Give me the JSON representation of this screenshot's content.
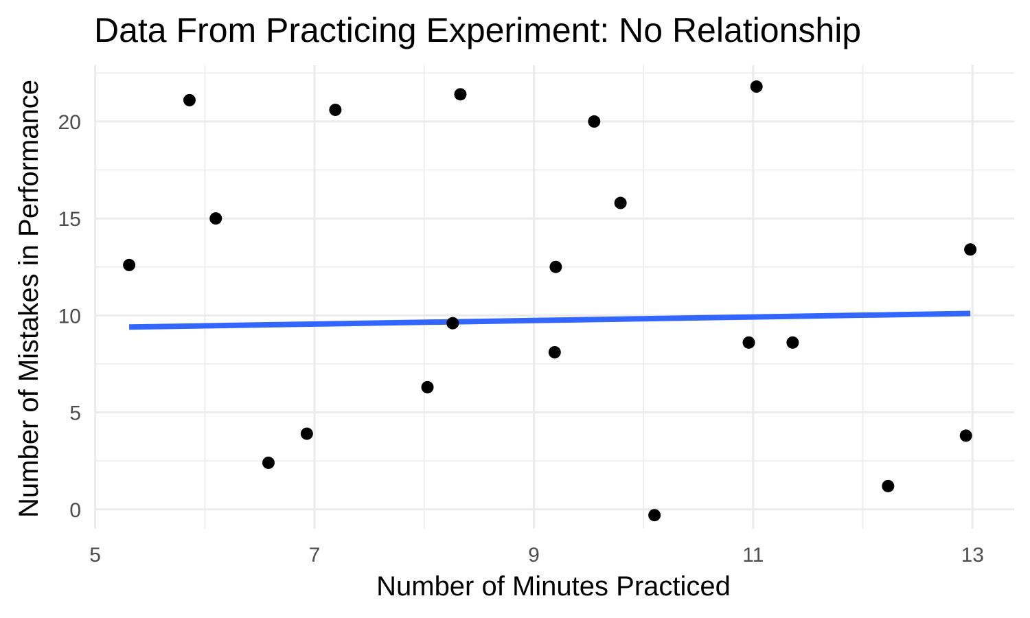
{
  "chart_data": {
    "type": "scatter",
    "title": "Data From Practicing Experiment: No Relationship",
    "xlabel": "Number of Minutes Practiced",
    "ylabel": "Number of Mistakes in Performance",
    "xlim": [
      4.99,
      13.38
    ],
    "ylim": [
      -1.0,
      22.9
    ],
    "x_ticks": [
      5,
      7,
      9,
      11,
      13
    ],
    "x_tick_labels": [
      "5",
      "7",
      "9",
      "11",
      "13"
    ],
    "x_minor_ticks": [
      6,
      8,
      10,
      12
    ],
    "y_ticks": [
      0,
      5,
      10,
      15,
      20
    ],
    "y_tick_labels": [
      "0",
      "5",
      "10",
      "15",
      "20"
    ],
    "y_minor_ticks": [
      2.5,
      7.5,
      12.5,
      17.5,
      22.5
    ],
    "grid": true,
    "points": [
      {
        "x": 5.31,
        "y": 12.6
      },
      {
        "x": 5.86,
        "y": 21.1
      },
      {
        "x": 6.1,
        "y": 15.0
      },
      {
        "x": 6.58,
        "y": 2.4
      },
      {
        "x": 6.93,
        "y": 3.9
      },
      {
        "x": 7.19,
        "y": 20.6
      },
      {
        "x": 8.03,
        "y": 6.3
      },
      {
        "x": 8.26,
        "y": 9.6
      },
      {
        "x": 8.33,
        "y": 21.4
      },
      {
        "x": 9.19,
        "y": 8.1
      },
      {
        "x": 9.2,
        "y": 12.5
      },
      {
        "x": 9.55,
        "y": 20.0
      },
      {
        "x": 9.79,
        "y": 15.8
      },
      {
        "x": 10.1,
        "y": -0.3
      },
      {
        "x": 10.96,
        "y": 8.6
      },
      {
        "x": 11.03,
        "y": 21.8
      },
      {
        "x": 11.36,
        "y": 8.6
      },
      {
        "x": 12.23,
        "y": 1.2
      },
      {
        "x": 12.94,
        "y": 3.8
      },
      {
        "x": 12.98,
        "y": 13.4
      }
    ],
    "trend_line": {
      "x": [
        5.31,
        12.98
      ],
      "y": [
        9.4,
        10.1
      ],
      "color": "#3366FF"
    },
    "point_color": "#000000"
  }
}
